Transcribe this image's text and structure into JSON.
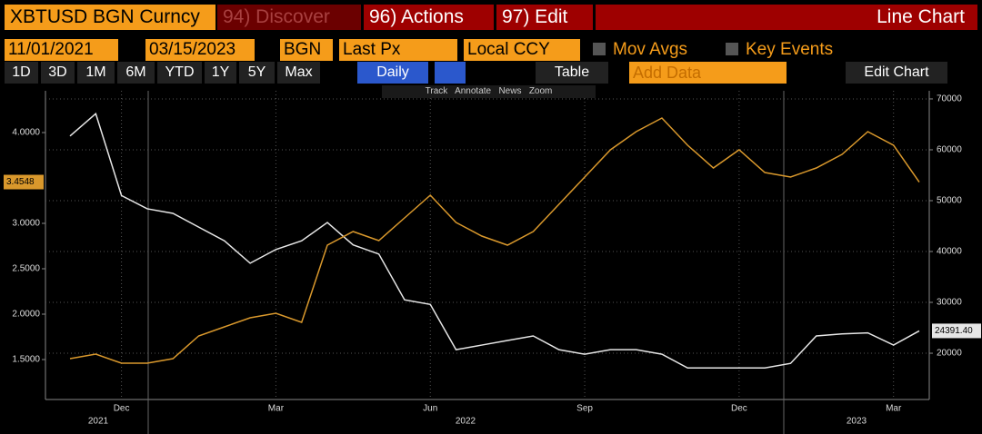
{
  "toolbar": {
    "security": "XBTUSD BGN Curncy",
    "discover": "94) Discover",
    "actions": "96) Actions",
    "edit": "97) Edit",
    "view": "Line Chart",
    "start_date": "11/01/2021",
    "end_date": "03/15/2023",
    "source": "BGN",
    "field": "Last Px",
    "currency": "Local CCY",
    "mov_avgs": "Mov Avgs",
    "key_events": "Key Events",
    "periods": [
      "1D",
      "3D",
      "1M",
      "6M",
      "YTD",
      "1Y",
      "5Y",
      "Max"
    ],
    "frequency": "Daily",
    "table": "Table",
    "add_data": "Add Data",
    "edit_chart": "Edit Chart",
    "tools": [
      "Track",
      "Annotate",
      "News",
      "Zoom"
    ]
  },
  "chart_data": {
    "type": "line",
    "categories": [
      null,
      null,
      "Dec",
      null,
      null,
      null,
      null,
      null,
      "Mar",
      null,
      null,
      null,
      null,
      null,
      "Jun",
      null,
      null,
      null,
      null,
      null,
      "Sep",
      null,
      null,
      null,
      null,
      null,
      "Dec",
      null,
      null,
      null,
      null,
      null,
      "Mar",
      null
    ],
    "x_year_labels": [
      "2021",
      "2022",
      "2023"
    ],
    "series": [
      {
        "color": "#e6e6e6",
        "axis": "y2",
        "values": [
          62700,
          67100,
          51000,
          48400,
          47500,
          44800,
          42100,
          37700,
          40400,
          42100,
          45700,
          41300,
          39500,
          30500,
          29600,
          20700,
          21600,
          22500,
          23400,
          20700,
          19800,
          20700,
          20700,
          19800,
          17100,
          17100,
          17100,
          17100,
          18000,
          23400,
          23800,
          24000,
          21600,
          24391.4
        ],
        "value_labels": [
          null,
          null,
          null,
          null,
          null,
          null,
          null,
          null,
          null,
          null,
          null,
          null,
          null,
          null,
          null,
          null,
          null,
          null,
          null,
          null,
          null,
          null,
          null,
          null,
          null,
          null,
          null,
          null,
          null,
          null,
          null,
          null,
          null,
          "24391.40"
        ]
      },
      {
        "color": "#d9982c",
        "values": [
          1.51,
          1.56,
          1.46,
          1.46,
          1.51,
          1.76,
          1.86,
          1.96,
          2.01,
          1.91,
          2.76,
          2.91,
          2.81,
          3.06,
          3.31,
          3.01,
          2.86,
          2.76,
          2.91,
          3.21,
          3.51,
          3.81,
          4.01,
          4.16,
          3.86,
          3.61,
          3.81,
          3.56,
          3.51,
          3.61,
          3.76,
          4.01,
          3.86,
          3.4548
        ]
      }
    ],
    "ylim": [
      1.06,
      4.46
    ],
    "yticks": [
      {
        "value": 1.5,
        "label": "1.5000"
      },
      {
        "value": 2,
        "label": "2.0000"
      },
      {
        "value": 2.5,
        "label": "2.5000"
      },
      {
        "value": 3,
        "label": "3.0000"
      },
      {
        "value": 4,
        "label": "4.0000"
      }
    ],
    "y2lim": [
      10900,
      71600
    ],
    "y2ticks": [
      20000,
      30000,
      40000,
      50000,
      60000,
      70000
    ],
    "grid": true
  }
}
